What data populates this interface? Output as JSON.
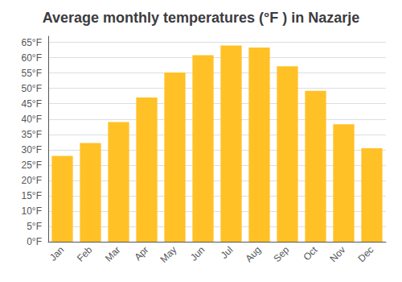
{
  "chart_data": {
    "type": "bar",
    "title": "Average monthly temperatures (°F ) in Nazarje",
    "categories": [
      "Jan",
      "Feb",
      "Mar",
      "Apr",
      "May",
      "Jun",
      "Jul",
      "Aug",
      "Sep",
      "Oct",
      "Nov",
      "Dec"
    ],
    "values": [
      28.0,
      32.2,
      39.0,
      47.0,
      55.2,
      60.8,
      64.0,
      63.3,
      57.2,
      49.2,
      38.3,
      30.5
    ],
    "color": "#FFC125",
    "ylim": [
      0,
      67
    ],
    "yticks": [
      {
        "value": 0,
        "label": "0°F"
      },
      {
        "value": 5,
        "label": "5°F"
      },
      {
        "value": 10,
        "label": "10°F"
      },
      {
        "value": 15,
        "label": "15°F"
      },
      {
        "value": 20,
        "label": "20°F"
      },
      {
        "value": 25,
        "label": "25°F"
      },
      {
        "value": 30,
        "label": "30°F"
      },
      {
        "value": 35,
        "label": "35°F"
      },
      {
        "value": 40,
        "label": "40°F"
      },
      {
        "value": 45,
        "label": "45°F"
      },
      {
        "value": 50,
        "label": "50°F"
      },
      {
        "value": 55,
        "label": "55°F"
      },
      {
        "value": 60,
        "label": "60°F"
      },
      {
        "value": 65,
        "label": "65°F"
      }
    ],
    "grid": true
  }
}
